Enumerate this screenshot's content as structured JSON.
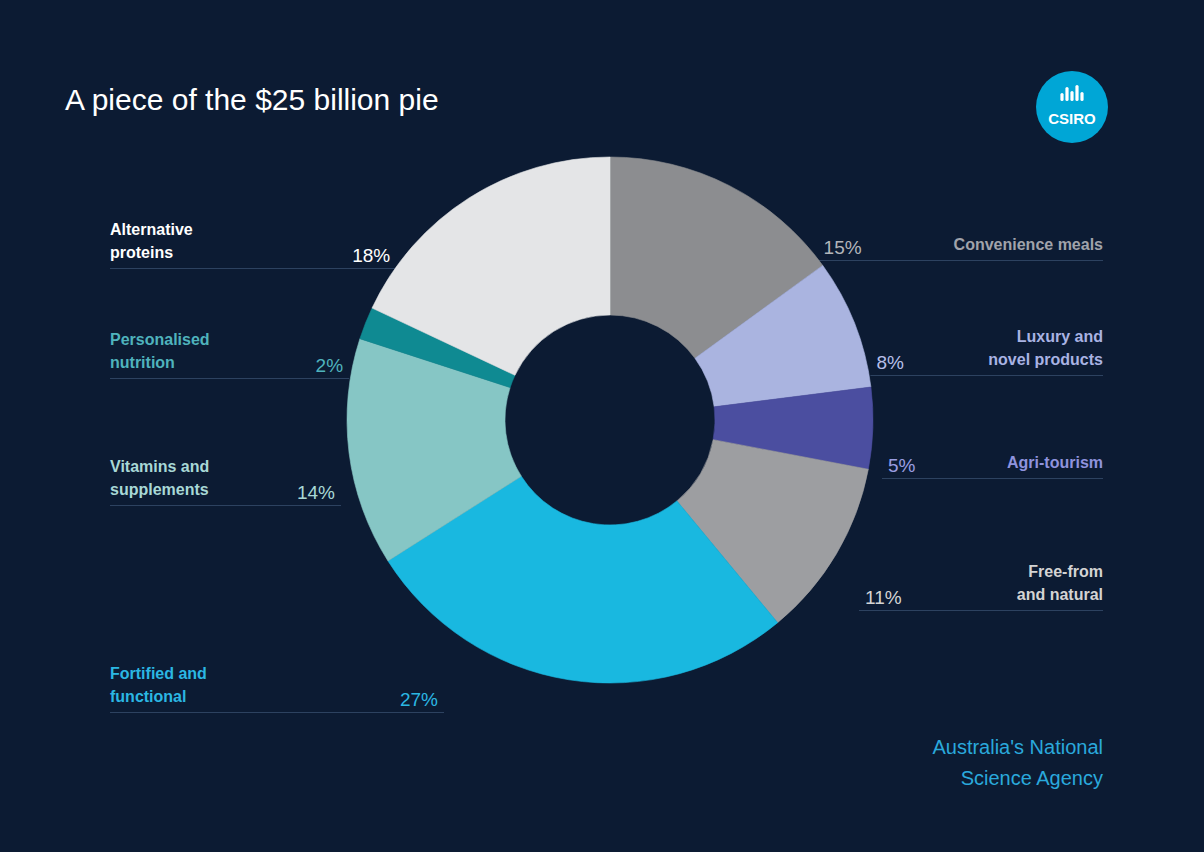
{
  "chart_data": {
    "type": "donut",
    "title": "A piece of the $25 billion pie",
    "categories": [
      "Convenience meals",
      "Luxury and novel products",
      "Agri-tourism",
      "Free-from and natural",
      "Fortified and functional",
      "Vitamins and supplements",
      "Personalised nutrition",
      "Alternative proteins"
    ],
    "values": [
      15,
      8,
      5,
      11,
      27,
      14,
      2,
      18
    ],
    "value_labels": [
      "15%",
      "8%",
      "5%",
      "11%",
      "27%",
      "14%",
      "2%",
      "18%"
    ],
    "colors": [
      "#8c8d90",
      "#aab4e0",
      "#4b4ea0",
      "#9d9ea1",
      "#19b8e0",
      "#86c6c5",
      "#0f8a92",
      "#e4e5e7"
    ],
    "data_labels": true,
    "annotations": [
      "CSIRO",
      "Australia's National Science Agency"
    ]
  }
}
